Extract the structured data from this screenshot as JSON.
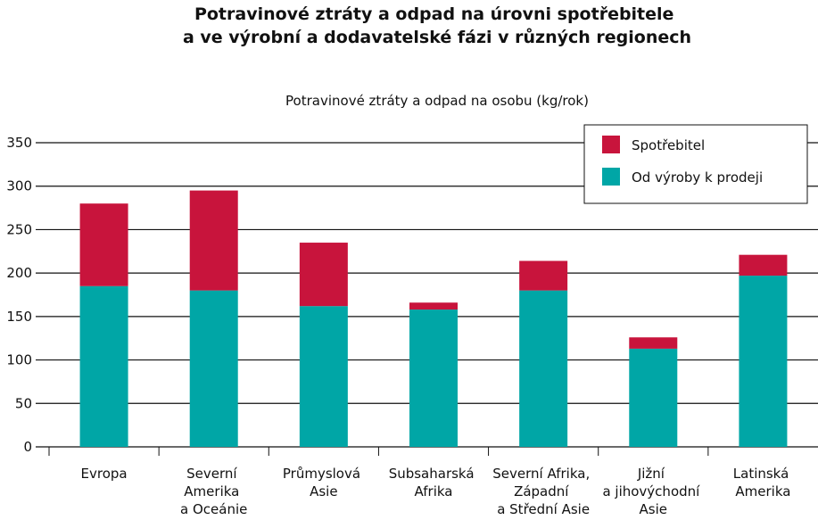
{
  "chart_data": {
    "type": "stacked_bar",
    "title": "Potravinové ztráty a odpad na úrovni spotřebitele\na ve výrobní a dodavatelské fázi v různých regionech",
    "subtitle": "Potravinové ztráty a odpad na osobu (kg/rok)",
    "categories": [
      "Evropa",
      "Severní\nAmerika\na Oceánie",
      "Průmyslová\nAsie",
      "Subsaharská\nAfrika",
      "Severní Afrika,\nZápadní\na Střední Asie",
      "Jižní\na jihovýchodní\nAsie",
      "Latinská\nAmerika"
    ],
    "series": [
      {
        "name": "Od výroby k prodeji",
        "color": "#00a6a6",
        "values": [
          185,
          180,
          162,
          158,
          180,
          113,
          197
        ]
      },
      {
        "name": "Spotřebitel",
        "color": "#c8143c",
        "values": [
          95,
          115,
          73,
          8,
          34,
          13,
          24
        ]
      }
    ],
    "ylim": [
      0,
      350
    ],
    "yticks": [
      0,
      50,
      100,
      150,
      200,
      250,
      300,
      350
    ],
    "grid": true,
    "legend": "top-right"
  }
}
